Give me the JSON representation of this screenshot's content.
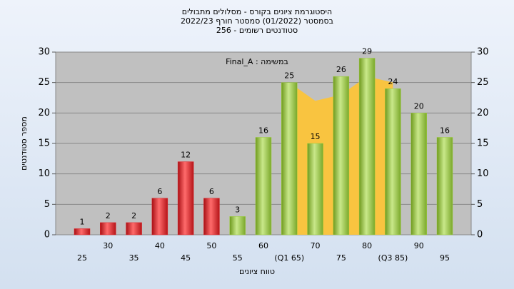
{
  "chart_data": {
    "type": "bar",
    "title": [
      "היסטוגרמת ציונים בקורס - מסלולים מתבולים",
      "בסמסטר  (01/2022)  סמסטר חורף 2022/23",
      "סטודנטים רשומים - 256"
    ],
    "annotation": "Final_A : במשימה",
    "x_label": "טווח ציונים",
    "y_label": "מספר סטודנטים",
    "categories": [
      "25",
      "30",
      "35",
      "40",
      "45",
      "50",
      "55",
      "60",
      "(Q1 65)",
      "70",
      "75",
      "80",
      "(Q3 85)",
      "90",
      "95"
    ],
    "values": [
      1,
      2,
      2,
      6,
      12,
      6,
      3,
      16,
      25,
      15,
      26,
      29,
      24,
      20,
      16
    ],
    "colors": [
      "#e0262b",
      "#e0262b",
      "#e0262b",
      "#e0262b",
      "#e0262b",
      "#e0262b",
      "#9ccc3c",
      "#9ccc3c",
      "#9ccc3c",
      "#9ccc3c",
      "#9ccc3c",
      "#9ccc3c",
      "#9ccc3c",
      "#9ccc3c",
      "#9ccc3c"
    ],
    "band": {
      "color": "#f9c440",
      "values": [
        null,
        null,
        null,
        null,
        null,
        null,
        null,
        null,
        25,
        22,
        23,
        26,
        25,
        null,
        null
      ]
    },
    "ylim": [
      0,
      30
    ],
    "yticks": [
      0,
      5,
      10,
      15,
      20,
      25,
      30
    ],
    "y2lim": [
      0,
      30
    ],
    "y2ticks": [
      0,
      5,
      10,
      15,
      20,
      25,
      30
    ],
    "grid": true
  }
}
